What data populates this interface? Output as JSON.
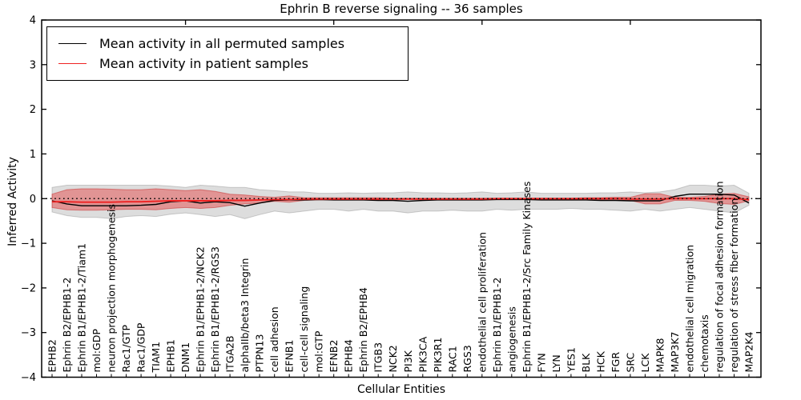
{
  "chart_data": {
    "type": "line",
    "title": "Ephrin B reverse signaling -- 36 samples",
    "xlabel": "Cellular Entities",
    "ylabel": "Inferred Activity",
    "ylim": [
      -4,
      4
    ],
    "yticks": [
      -4,
      -3,
      -2,
      -1,
      0,
      1,
      2,
      3,
      4
    ],
    "top_axis_ticks_at": [
      10,
      20,
      30,
      40
    ],
    "grid": false,
    "legend_position": "upper left",
    "zero_line": {
      "style": "dotted",
      "color": "#000000",
      "y": 0
    },
    "categories": [
      "EPHB2",
      "Ephrin B2/EPHB1-2",
      "Ephrin B1/EPHB1-2/Tiam1",
      "mol:GDP",
      "neuron projection morphogenesis",
      "Rac1/GTP",
      "Rac1/GDP",
      "TIAM1",
      "EPHB1",
      "DNM1",
      "Ephrin B1/EPHB1-2/NCK2",
      "Ephrin B1/EPHB1-2/RGS3",
      "ITGA2B",
      "alphaIIb/beta3 Integrin",
      "PTPN13",
      "cell adhesion",
      "EFNB1",
      "cell-cell signaling",
      "mol:GTP",
      "EFNB2",
      "EPHB4",
      "Ephrin B2/EPHB4",
      "ITGB3",
      "NCK2",
      "PI3K",
      "PIK3CA",
      "PIK3R1",
      "RAC1",
      "RGS3",
      "endothelial cell proliferation",
      "Ephrin B1/EPHB1-2",
      "angiogenesis",
      "Ephrin B1/EPHB1-2/Src Family Kinases",
      "FYN",
      "LYN",
      "YES1",
      "BLK",
      "HCK",
      "FGR",
      "SRC",
      "LCK",
      "MAPK8",
      "MAP3K7",
      "endothelial cell migration",
      "chemotaxis",
      "regulation of focal adhesion formation",
      "regulation of stress fiber formation",
      "MAP2K4"
    ],
    "series": [
      {
        "name": "Mean activity in all permuted samples",
        "color": "#000000",
        "width": 1.4,
        "values": [
          -0.05,
          -0.12,
          -0.16,
          -0.16,
          -0.16,
          -0.16,
          -0.15,
          -0.13,
          -0.07,
          -0.05,
          -0.1,
          -0.07,
          -0.09,
          -0.17,
          -0.1,
          -0.04,
          -0.03,
          -0.03,
          -0.02,
          -0.03,
          -0.03,
          -0.03,
          -0.04,
          -0.04,
          -0.06,
          -0.04,
          -0.03,
          -0.03,
          -0.03,
          -0.03,
          -0.02,
          -0.02,
          -0.02,
          -0.03,
          -0.03,
          -0.03,
          -0.03,
          -0.04,
          -0.04,
          -0.05,
          -0.05,
          -0.05,
          0.05,
          0.1,
          0.1,
          0.1,
          0.08,
          -0.1
        ]
      },
      {
        "name": "Mean activity in patient samples",
        "color": "#ee2222",
        "width": 1.9,
        "values": [
          -0.07,
          -0.07,
          -0.08,
          -0.08,
          -0.08,
          -0.07,
          -0.07,
          -0.06,
          -0.05,
          -0.05,
          -0.05,
          -0.05,
          -0.04,
          -0.04,
          -0.03,
          -0.02,
          -0.02,
          -0.01,
          -0.01,
          -0.01,
          -0.01,
          -0.01,
          -0.01,
          -0.01,
          -0.01,
          -0.01,
          -0.01,
          -0.01,
          -0.01,
          -0.01,
          0.0,
          0.0,
          0.0,
          0.0,
          0.0,
          0.0,
          0.0,
          0.0,
          0.0,
          -0.01,
          -0.01,
          -0.01,
          0.0,
          0.0,
          0.0,
          0.0,
          0.0,
          -0.02
        ]
      }
    ],
    "bands": [
      {
        "name": "permuted samples range",
        "fill": "rgba(120,120,120,0.25)",
        "edge": "rgba(120,120,120,0.35)",
        "top": [
          0.25,
          0.3,
          0.3,
          0.3,
          0.3,
          0.3,
          0.3,
          0.3,
          0.28,
          0.25,
          0.3,
          0.28,
          0.25,
          0.25,
          0.2,
          0.18,
          0.15,
          0.15,
          0.12,
          0.12,
          0.13,
          0.12,
          0.13,
          0.13,
          0.15,
          0.13,
          0.13,
          0.12,
          0.13,
          0.15,
          0.12,
          0.13,
          0.15,
          0.12,
          0.12,
          0.12,
          0.12,
          0.13,
          0.13,
          0.15,
          0.13,
          0.15,
          0.2,
          0.3,
          0.3,
          0.28,
          0.3,
          0.12
        ],
        "bottom": [
          -0.3,
          -0.38,
          -0.42,
          -0.42,
          -0.45,
          -0.4,
          -0.38,
          -0.4,
          -0.35,
          -0.32,
          -0.36,
          -0.4,
          -0.36,
          -0.45,
          -0.36,
          -0.28,
          -0.32,
          -0.28,
          -0.24,
          -0.24,
          -0.28,
          -0.24,
          -0.28,
          -0.28,
          -0.32,
          -0.28,
          -0.28,
          -0.26,
          -0.28,
          -0.28,
          -0.24,
          -0.26,
          -0.24,
          -0.24,
          -0.24,
          -0.22,
          -0.24,
          -0.24,
          -0.26,
          -0.28,
          -0.24,
          -0.28,
          -0.24,
          -0.2,
          -0.24,
          -0.28,
          -0.32,
          -0.15
        ]
      },
      {
        "name": "patient samples range",
        "fill": "rgba(230,60,60,0.45)",
        "edge": "rgba(200,40,40,0.50)",
        "top": [
          0.1,
          0.2,
          0.22,
          0.22,
          0.21,
          0.2,
          0.2,
          0.22,
          0.2,
          0.18,
          0.2,
          0.16,
          0.1,
          0.08,
          0.05,
          0.03,
          0.06,
          0.02,
          0.02,
          0.02,
          0.02,
          0.02,
          0.02,
          0.01,
          0.01,
          0.01,
          0.01,
          0.01,
          0.01,
          0.01,
          0.01,
          0.01,
          0.01,
          0.01,
          0.01,
          0.01,
          0.02,
          0.02,
          0.03,
          0.03,
          0.11,
          0.11,
          0.03,
          0.03,
          0.05,
          0.1,
          0.12,
          0.04
        ],
        "bottom": [
          -0.2,
          -0.25,
          -0.26,
          -0.26,
          -0.25,
          -0.24,
          -0.24,
          -0.25,
          -0.22,
          -0.2,
          -0.22,
          -0.2,
          -0.15,
          -0.12,
          -0.1,
          -0.06,
          -0.08,
          -0.04,
          -0.03,
          -0.03,
          -0.03,
          -0.03,
          -0.03,
          -0.02,
          -0.02,
          -0.02,
          -0.02,
          -0.02,
          -0.02,
          -0.02,
          -0.02,
          -0.02,
          -0.02,
          -0.02,
          -0.02,
          -0.02,
          -0.03,
          -0.03,
          -0.04,
          -0.04,
          -0.12,
          -0.12,
          -0.04,
          -0.04,
          -0.06,
          -0.11,
          -0.13,
          -0.05
        ]
      }
    ]
  }
}
